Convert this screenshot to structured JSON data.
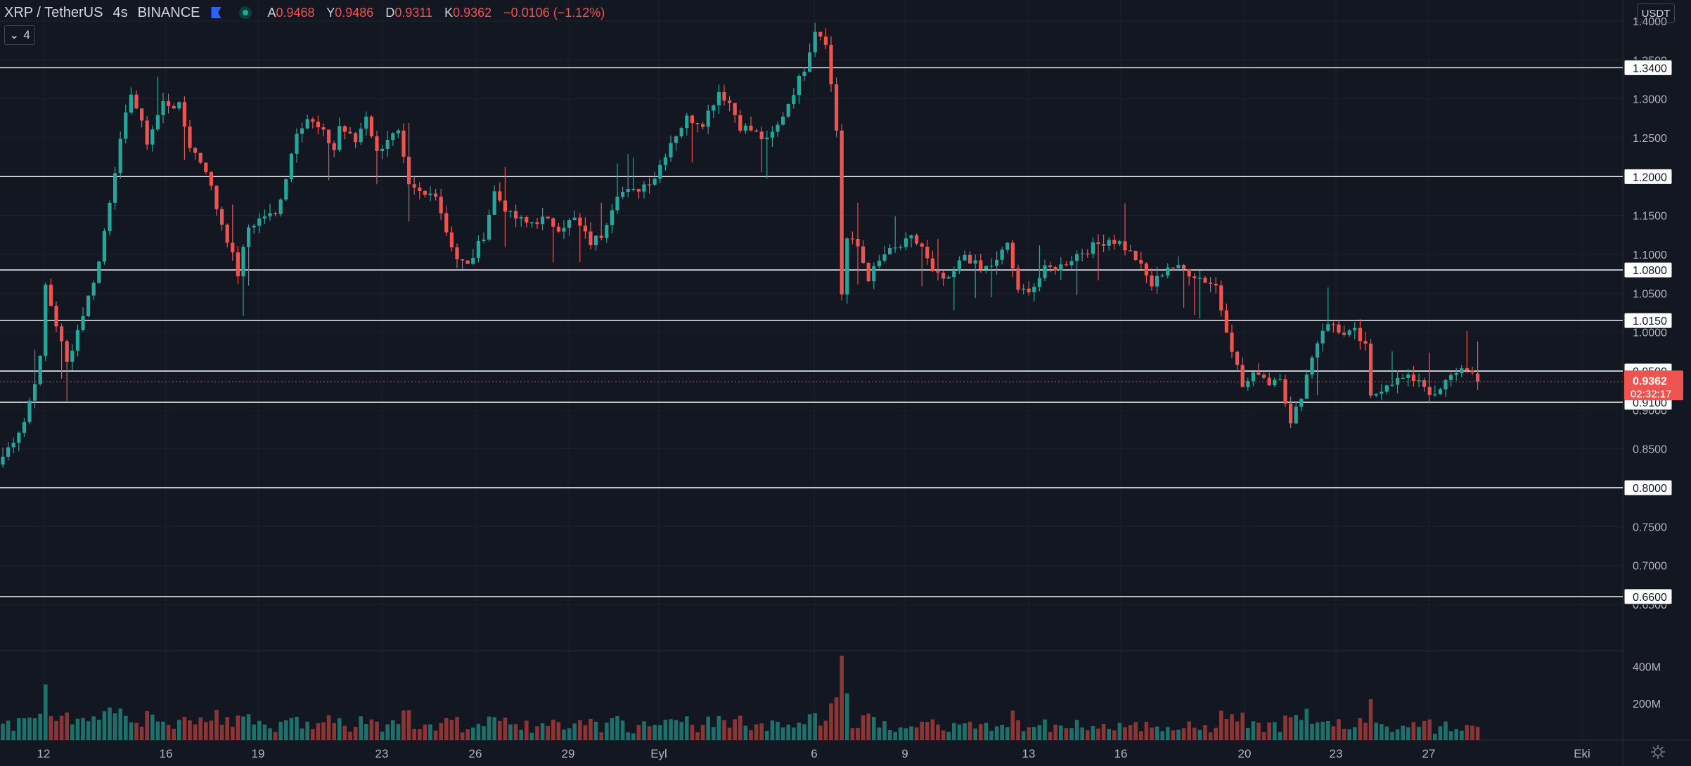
{
  "header": {
    "symbol": "XRP / TetherUS",
    "interval": "4s",
    "exchange": "BINANCE",
    "ohlc": [
      {
        "key": "A",
        "value": "0.9468"
      },
      {
        "key": "Y",
        "value": "0.9486"
      },
      {
        "key": "D",
        "value": "0.9311"
      },
      {
        "key": "K",
        "value": "0.9362"
      },
      {
        "key": "",
        "value": "−0.0106 (−1.12%)"
      }
    ],
    "indicator_count": "4",
    "currency_button": "USDT"
  },
  "colors": {
    "background": "#131722",
    "up": "#26a69a",
    "down": "#ef5350",
    "grid": "#1e222d",
    "text": "#d1d4dc",
    "level_line": "#ffffff"
  },
  "price_axis": {
    "ticks": [
      "1.4000",
      "1.3500",
      "1.3000",
      "1.2500",
      "1.2000",
      "1.1500",
      "1.1000",
      "1.0500",
      "1.0000",
      "0.9500",
      "0.9000",
      "0.8500",
      "0.8000",
      "0.7500",
      "0.7000",
      "0.6500"
    ],
    "current_price": "0.9362",
    "countdown": "02:32:17"
  },
  "horizontal_levels": [
    "1.3400",
    "1.2000",
    "1.0800",
    "1.0150",
    "0.9500",
    "0.9100",
    "0.8000",
    "0.6600"
  ],
  "volume_axis": {
    "ticks": [
      "400M",
      "200M"
    ]
  },
  "time_axis": {
    "labels": [
      "12",
      "16",
      "19",
      "23",
      "26",
      "29",
      "Eyl",
      "6",
      "9",
      "13",
      "16",
      "20",
      "23",
      "27",
      "Eki"
    ]
  },
  "chart_data": {
    "type": "candlestick",
    "title": "XRP / TetherUS 4s BINANCE",
    "ylim": [
      0.64,
      1.41
    ],
    "close_path": [
      [
        0,
        0.84
      ],
      [
        4,
        0.885
      ],
      [
        7,
        0.965
      ],
      [
        8,
        1.06
      ],
      [
        12,
        0.96
      ],
      [
        16,
        1.045
      ],
      [
        18,
        1.09
      ],
      [
        21,
        1.21
      ],
      [
        24,
        1.31
      ],
      [
        27,
        1.245
      ],
      [
        30,
        1.295
      ],
      [
        33,
        1.29
      ],
      [
        35,
        1.24
      ],
      [
        38,
        1.21
      ],
      [
        40,
        1.16
      ],
      [
        42,
        1.12
      ],
      [
        44,
        1.075
      ],
      [
        46,
        1.135
      ],
      [
        49,
        1.15
      ],
      [
        51,
        1.15
      ],
      [
        53,
        1.2
      ],
      [
        55,
        1.26
      ],
      [
        57,
        1.275
      ],
      [
        60,
        1.255
      ],
      [
        62,
        1.235
      ],
      [
        63,
        1.265
      ],
      [
        66,
        1.245
      ],
      [
        68,
        1.28
      ],
      [
        70,
        1.23
      ],
      [
        72,
        1.25
      ],
      [
        74,
        1.255
      ],
      [
        76,
        1.185
      ],
      [
        79,
        1.175
      ],
      [
        81,
        1.18
      ],
      [
        83,
        1.13
      ],
      [
        85,
        1.095
      ],
      [
        87,
        1.085
      ],
      [
        90,
        1.125
      ],
      [
        92,
        1.18
      ],
      [
        95,
        1.15
      ],
      [
        98,
        1.14
      ],
      [
        101,
        1.145
      ],
      [
        104,
        1.135
      ],
      [
        107,
        1.145
      ],
      [
        110,
        1.115
      ],
      [
        112,
        1.125
      ],
      [
        115,
        1.18
      ],
      [
        118,
        1.18
      ],
      [
        122,
        1.2
      ],
      [
        125,
        1.245
      ],
      [
        128,
        1.275
      ],
      [
        131,
        1.27
      ],
      [
        134,
        1.31
      ],
      [
        136,
        1.295
      ],
      [
        138,
        1.265
      ],
      [
        140,
        1.26
      ],
      [
        143,
        1.245
      ],
      [
        145,
        1.265
      ],
      [
        148,
        1.31
      ],
      [
        150,
        1.34
      ],
      [
        152,
        1.39
      ],
      [
        154,
        1.375
      ],
      [
        156,
        1.26
      ],
      [
        157,
        1.05
      ],
      [
        158,
        1.12
      ],
      [
        160,
        1.11
      ],
      [
        162,
        1.07
      ],
      [
        165,
        1.1
      ],
      [
        168,
        1.11
      ],
      [
        170,
        1.12
      ],
      [
        172,
        1.11
      ],
      [
        174,
        1.075
      ],
      [
        177,
        1.065
      ],
      [
        180,
        1.1
      ],
      [
        183,
        1.08
      ],
      [
        186,
        1.09
      ],
      [
        188,
        1.115
      ],
      [
        190,
        1.05
      ],
      [
        193,
        1.06
      ],
      [
        195,
        1.08
      ],
      [
        198,
        1.085
      ],
      [
        201,
        1.1
      ],
      [
        204,
        1.11
      ],
      [
        207,
        1.12
      ],
      [
        209,
        1.115
      ],
      [
        212,
        1.095
      ],
      [
        215,
        1.06
      ],
      [
        218,
        1.085
      ],
      [
        221,
        1.08
      ],
      [
        224,
        1.07
      ],
      [
        227,
        1.06
      ],
      [
        228,
        1.03
      ],
      [
        230,
        0.98
      ],
      [
        232,
        0.93
      ],
      [
        235,
        0.95
      ],
      [
        237,
        0.935
      ],
      [
        239,
        0.945
      ],
      [
        241,
        0.88
      ],
      [
        243,
        0.92
      ],
      [
        245,
        0.97
      ],
      [
        247,
        1.005
      ],
      [
        249,
        1.01
      ],
      [
        251,
        0.995
      ],
      [
        253,
        1.0
      ],
      [
        255,
        0.98
      ],
      [
        256,
        0.915
      ],
      [
        259,
        0.935
      ],
      [
        262,
        0.94
      ],
      [
        265,
        0.94
      ],
      [
        268,
        0.915
      ],
      [
        270,
        0.935
      ],
      [
        272,
        0.95
      ],
      [
        274,
        0.955
      ],
      [
        276,
        0.9362
      ]
    ],
    "volume_ylim": [
      0,
      460
    ]
  }
}
